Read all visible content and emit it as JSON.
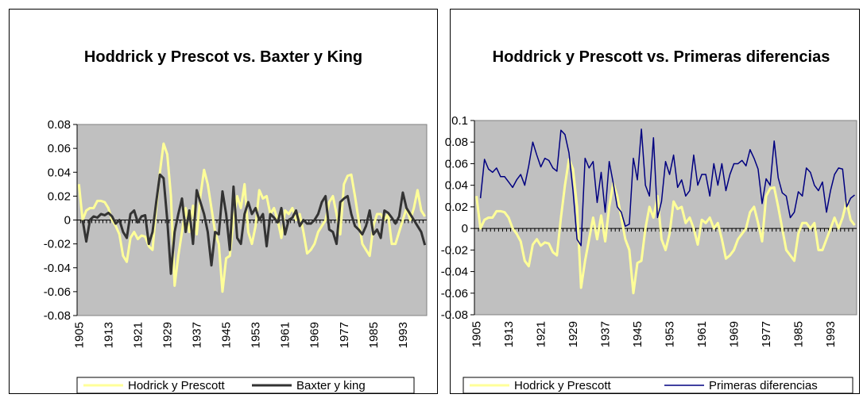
{
  "chart_data": [
    {
      "type": "line",
      "title": "Hoddrick y Prescot vs. Baxter y King",
      "categories": [
        1905,
        null,
        null,
        null,
        null,
        null,
        null,
        null,
        1913,
        null,
        null,
        null,
        null,
        null,
        null,
        null,
        1921,
        null,
        null,
        null,
        null,
        null,
        null,
        null,
        1929,
        null,
        null,
        null,
        null,
        null,
        null,
        null,
        1937,
        null,
        null,
        null,
        null,
        null,
        null,
        null,
        1945,
        null,
        null,
        null,
        null,
        null,
        null,
        null,
        1953,
        null,
        null,
        null,
        null,
        null,
        null,
        null,
        1961,
        null,
        null,
        null,
        null,
        null,
        null,
        null,
        1969,
        null,
        null,
        null,
        null,
        null,
        null,
        null,
        1977,
        null,
        null,
        null,
        null,
        null,
        null,
        null,
        1985,
        null,
        null,
        null,
        null,
        null,
        null,
        null,
        1993,
        null,
        null,
        null,
        null,
        null,
        null
      ],
      "ylim": [
        -0.08,
        0.08
      ],
      "yticks": [
        -0.08,
        -0.06,
        -0.04,
        -0.02,
        0,
        0.02,
        0.04,
        0.06,
        0.08
      ],
      "series": [
        {
          "name": "Hodrick y Prescott",
          "color": "#ffff99",
          "values": [
            0.03,
            0.0,
            0.008,
            0.01,
            0.01,
            0.016,
            0.016,
            0.015,
            0.01,
            0.0,
            -0.005,
            -0.012,
            -0.03,
            -0.035,
            -0.015,
            -0.01,
            -0.016,
            -0.013,
            -0.014,
            -0.022,
            -0.025,
            0.01,
            0.04,
            0.064,
            0.055,
            0.02,
            -0.055,
            -0.03,
            -0.01,
            0.01,
            -0.01,
            0.012,
            -0.012,
            0.02,
            0.042,
            0.03,
            0.01,
            -0.01,
            -0.02,
            -0.06,
            -0.032,
            -0.03,
            0.0,
            0.02,
            0.01,
            0.03,
            -0.01,
            -0.02,
            -0.005,
            0.025,
            0.018,
            0.02,
            0.005,
            0.01,
            0.0,
            -0.015,
            0.008,
            0.005,
            0.01,
            0.0,
            0.005,
            -0.01,
            -0.028,
            -0.025,
            -0.02,
            -0.01,
            -0.005,
            0.0,
            0.015,
            0.02,
            0.005,
            -0.012,
            0.03,
            0.037,
            0.038,
            0.02,
            0.0,
            -0.02,
            -0.025,
            -0.03,
            -0.005,
            0.005,
            0.005,
            0.0,
            0.005,
            -0.02,
            -0.02,
            -0.01,
            0.0,
            0.01,
            0.0,
            0.01,
            0.025,
            0.008,
            0.003
          ]
        },
        {
          "name": "Baxter y king",
          "color": "#333333",
          "values": [
            null,
            0.0,
            -0.018,
            0.0,
            0.003,
            0.002,
            0.005,
            0.004,
            0.006,
            0.003,
            -0.003,
            0.0,
            -0.01,
            -0.015,
            0.005,
            0.008,
            -0.002,
            0.003,
            0.004,
            -0.02,
            -0.01,
            0.015,
            0.038,
            0.035,
            0.0,
            -0.045,
            -0.01,
            0.005,
            0.018,
            -0.01,
            0.008,
            -0.02,
            0.025,
            0.015,
            0.005,
            -0.01,
            -0.038,
            -0.01,
            -0.012,
            0.024,
            0.005,
            -0.025,
            0.028,
            -0.015,
            -0.02,
            0.005,
            0.015,
            0.005,
            0.01,
            0.0,
            0.005,
            -0.022,
            0.005,
            0.002,
            -0.002,
            0.01,
            -0.012,
            0.0,
            0.002,
            0.008,
            -0.005,
            0.0,
            -0.003,
            -0.003,
            0.0,
            0.005,
            0.015,
            0.02,
            -0.008,
            -0.01,
            -0.02,
            0.015,
            0.018,
            0.02,
            0.005,
            -0.005,
            -0.008,
            -0.012,
            -0.005,
            0.008,
            -0.012,
            -0.008,
            -0.015,
            0.008,
            0.006,
            0.002,
            -0.003,
            0.003,
            0.023,
            0.01,
            0.005,
            0.0,
            -0.005,
            -0.01,
            -0.021
          ]
        }
      ]
    },
    {
      "type": "line",
      "title": "Hoddrick y Prescott vs. Primeras diferencias",
      "categories": [
        1905,
        null,
        null,
        null,
        null,
        null,
        null,
        null,
        1913,
        null,
        null,
        null,
        null,
        null,
        null,
        null,
        1921,
        null,
        null,
        null,
        null,
        null,
        null,
        null,
        1929,
        null,
        null,
        null,
        null,
        null,
        null,
        null,
        1937,
        null,
        null,
        null,
        null,
        null,
        null,
        null,
        1945,
        null,
        null,
        null,
        null,
        null,
        null,
        null,
        1953,
        null,
        null,
        null,
        null,
        null,
        null,
        null,
        1961,
        null,
        null,
        null,
        null,
        null,
        null,
        null,
        1969,
        null,
        null,
        null,
        null,
        null,
        null,
        null,
        1977,
        null,
        null,
        null,
        null,
        null,
        null,
        null,
        1985,
        null,
        null,
        null,
        null,
        null,
        null,
        null,
        1993,
        null,
        null,
        null,
        null,
        null,
        null
      ],
      "ylim": [
        -0.08,
        0.1
      ],
      "yticks": [
        -0.08,
        -0.06,
        -0.04,
        -0.02,
        0,
        0.02,
        0.04,
        0.06,
        0.08,
        0.1
      ],
      "series": [
        {
          "name": "Hodrick y Prescott",
          "color": "#ffff99",
          "values": [
            0.03,
            0.0,
            0.008,
            0.01,
            0.01,
            0.016,
            0.016,
            0.015,
            0.01,
            0.0,
            -0.005,
            -0.012,
            -0.03,
            -0.035,
            -0.015,
            -0.01,
            -0.016,
            -0.013,
            -0.014,
            -0.022,
            -0.025,
            0.01,
            0.04,
            0.064,
            0.055,
            0.02,
            -0.055,
            -0.03,
            -0.01,
            0.01,
            -0.01,
            0.012,
            -0.012,
            0.02,
            0.042,
            0.03,
            0.01,
            -0.01,
            -0.02,
            -0.06,
            -0.032,
            -0.03,
            0.0,
            0.02,
            0.01,
            0.03,
            -0.01,
            -0.02,
            -0.005,
            0.025,
            0.018,
            0.02,
            0.005,
            0.01,
            0.0,
            -0.015,
            0.008,
            0.005,
            0.01,
            0.0,
            0.005,
            -0.01,
            -0.028,
            -0.025,
            -0.02,
            -0.01,
            -0.005,
            0.0,
            0.015,
            0.02,
            0.005,
            -0.012,
            0.03,
            0.037,
            0.038,
            0.02,
            0.0,
            -0.02,
            -0.025,
            -0.03,
            -0.005,
            0.005,
            0.005,
            0.0,
            0.005,
            -0.02,
            -0.02,
            -0.01,
            0.0,
            0.01,
            0.0,
            0.01,
            0.025,
            0.008,
            0.003
          ]
        },
        {
          "name": "Primeras diferencias",
          "color": "#000080",
          "values": [
            null,
            0.028,
            0.064,
            0.055,
            0.052,
            0.056,
            0.048,
            0.048,
            0.043,
            0.038,
            0.045,
            0.05,
            0.04,
            0.058,
            0.08,
            0.068,
            0.057,
            0.065,
            0.063,
            0.056,
            0.053,
            0.091,
            0.087,
            0.07,
            0.035,
            -0.01,
            -0.016,
            0.065,
            0.056,
            0.062,
            0.024,
            0.052,
            0.015,
            0.062,
            0.042,
            0.02,
            0.015,
            0.002,
            0.004,
            0.065,
            0.045,
            0.092,
            0.04,
            0.03,
            0.084,
            0.01,
            0.025,
            0.062,
            0.05,
            0.068,
            0.038,
            0.045,
            0.03,
            0.035,
            0.068,
            0.04,
            0.05,
            0.05,
            0.03,
            0.06,
            0.04,
            0.06,
            0.035,
            0.05,
            0.06,
            0.06,
            0.063,
            0.058,
            0.073,
            0.065,
            0.055,
            0.023,
            0.046,
            0.04,
            0.081,
            0.047,
            0.033,
            0.03,
            0.01,
            0.015,
            0.034,
            0.03,
            0.056,
            0.052,
            0.04,
            0.035,
            0.043,
            0.015,
            0.035,
            0.05,
            0.056,
            0.055,
            0.02,
            0.028,
            0.031
          ]
        }
      ]
    }
  ]
}
